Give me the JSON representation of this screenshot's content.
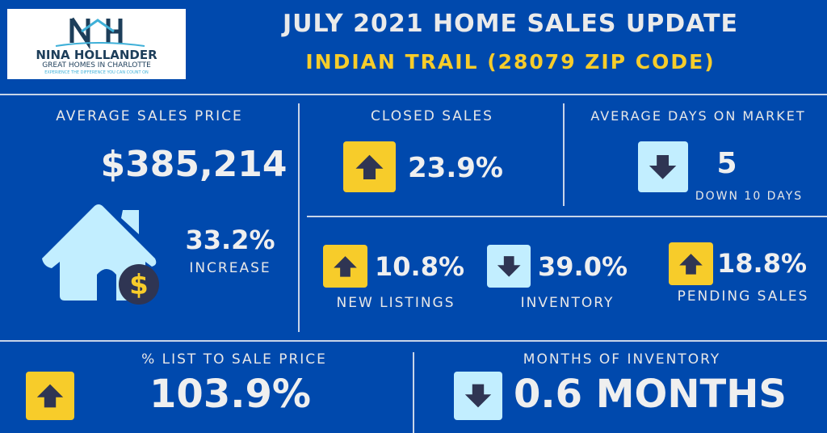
{
  "logo": {
    "initials": "NH",
    "name": "NINA HOLLANDER",
    "tagline": "GREAT HOMES IN CHARLOTTE",
    "slogan": "EXPERIENCE THE DIFFERENCE YOU CAN COUNT ON"
  },
  "header": {
    "title": "JULY 2021 HOME SALES UPDATE",
    "subtitle": "INDIAN TRAIL  (28079 ZIP CODE)"
  },
  "avg_price": {
    "label": "AVERAGE SALES PRICE",
    "value": "$385,214",
    "change": "33.2%",
    "change_label": "INCREASE"
  },
  "closed_sales": {
    "label": "CLOSED SALES",
    "value": "23.9%",
    "direction": "up"
  },
  "days_on_market": {
    "label": "AVERAGE DAYS ON MARKET",
    "value": "5",
    "note": "DOWN 10 DAYS",
    "direction": "down"
  },
  "new_listings": {
    "label": "NEW LISTINGS",
    "value": "10.8%",
    "direction": "up"
  },
  "inventory": {
    "label": "INVENTORY",
    "value": "39.0%",
    "direction": "down"
  },
  "pending": {
    "label": "PENDING SALES",
    "value": "18.8%",
    "direction": "up"
  },
  "list_to_sale": {
    "label": "% LIST TO SALE PRICE",
    "value": "103.9%",
    "direction": "up"
  },
  "months_inventory": {
    "label": "MONTHS OF INVENTORY",
    "value": "0.6 MONTHS",
    "direction": "down"
  },
  "colors": {
    "background": "#0049ad",
    "accent_yellow": "#f7cc2a",
    "accent_lightblue": "#c2eeff",
    "arrow": "#2f3553"
  }
}
